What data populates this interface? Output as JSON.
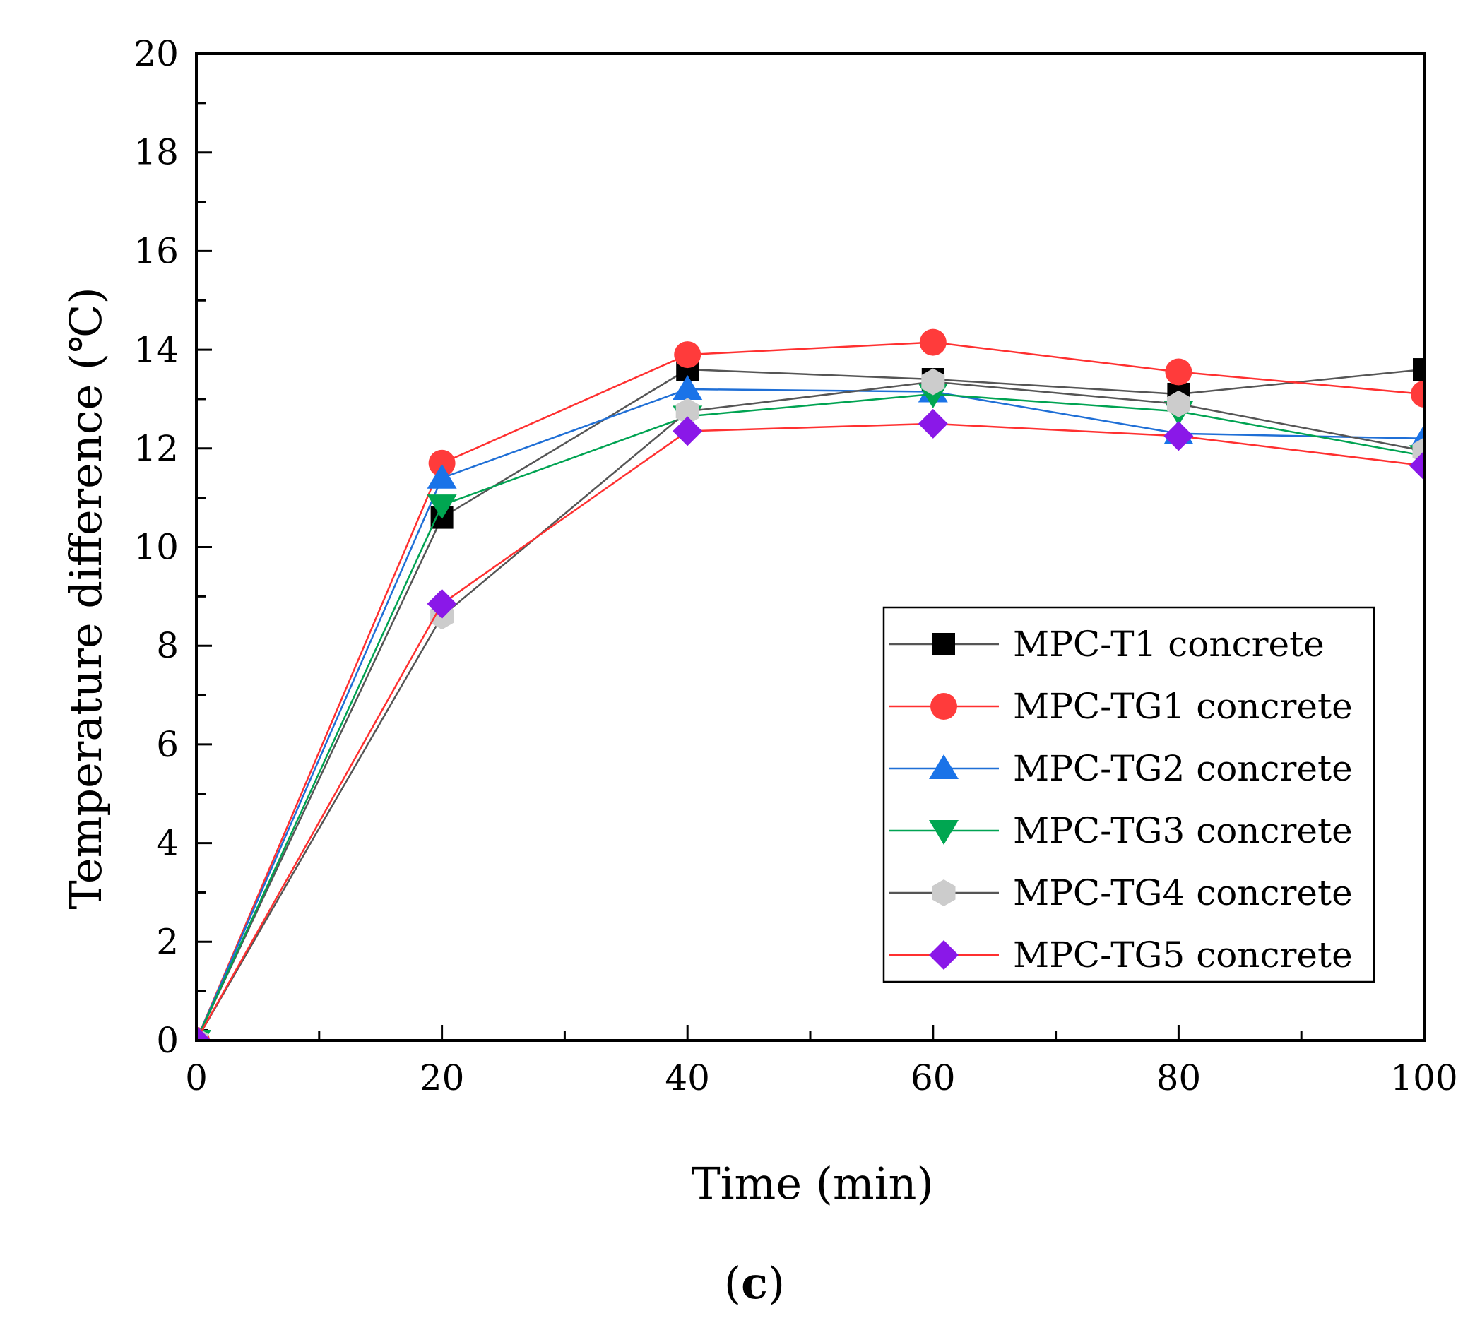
{
  "chart_data": {
    "type": "line",
    "xlabel": "Time (min)",
    "ylabel": "Temperature difference (℃)",
    "panel_label_open": "(",
    "panel_label_letter": "c",
    "panel_label_close": ")",
    "xlim": [
      0,
      100
    ],
    "ylim": [
      0,
      20
    ],
    "x_ticks": [
      "0",
      "20",
      "40",
      "60",
      "80",
      "100"
    ],
    "y_ticks": [
      "0",
      "2",
      "4",
      "6",
      "8",
      "10",
      "12",
      "14",
      "16",
      "18",
      "20"
    ],
    "x": [
      0,
      20,
      40,
      60,
      80,
      100
    ],
    "legend_position": "lower-right",
    "grid": false,
    "series": [
      {
        "name": "MPC-T1 concrete",
        "values": [
          0,
          10.6,
          13.6,
          13.4,
          13.1,
          13.6
        ],
        "line_color": "#555555",
        "marker_color": "#000000",
        "marker": "square"
      },
      {
        "name": "MPC-TG1 concrete",
        "values": [
          0,
          11.7,
          13.9,
          14.15,
          13.55,
          13.1
        ],
        "line_color": "#ff3030",
        "marker_color": "#ff3b3b",
        "marker": "circle"
      },
      {
        "name": "MPC-TG2 concrete",
        "values": [
          0,
          11.4,
          13.2,
          13.15,
          12.3,
          12.2
        ],
        "line_color": "#1f6fd6",
        "marker_color": "#1a73e8",
        "marker": "triangle-up"
      },
      {
        "name": "MPC-TG3 concrete",
        "values": [
          0,
          10.85,
          12.65,
          13.1,
          12.75,
          11.85
        ],
        "line_color": "#00a352",
        "marker_color": "#00a651",
        "marker": "triangle-down"
      },
      {
        "name": "MPC-TG4 concrete",
        "values": [
          0,
          8.6,
          12.75,
          13.35,
          12.9,
          11.95
        ],
        "line_color": "#555555",
        "marker_color": "#cccccc",
        "marker": "hexagon"
      },
      {
        "name": "MPC-TG5 concrete",
        "values": [
          0,
          8.85,
          12.35,
          12.5,
          12.25,
          11.65
        ],
        "line_color": "#ff3030",
        "marker_color": "#8a18e8",
        "marker": "diamond"
      }
    ]
  }
}
